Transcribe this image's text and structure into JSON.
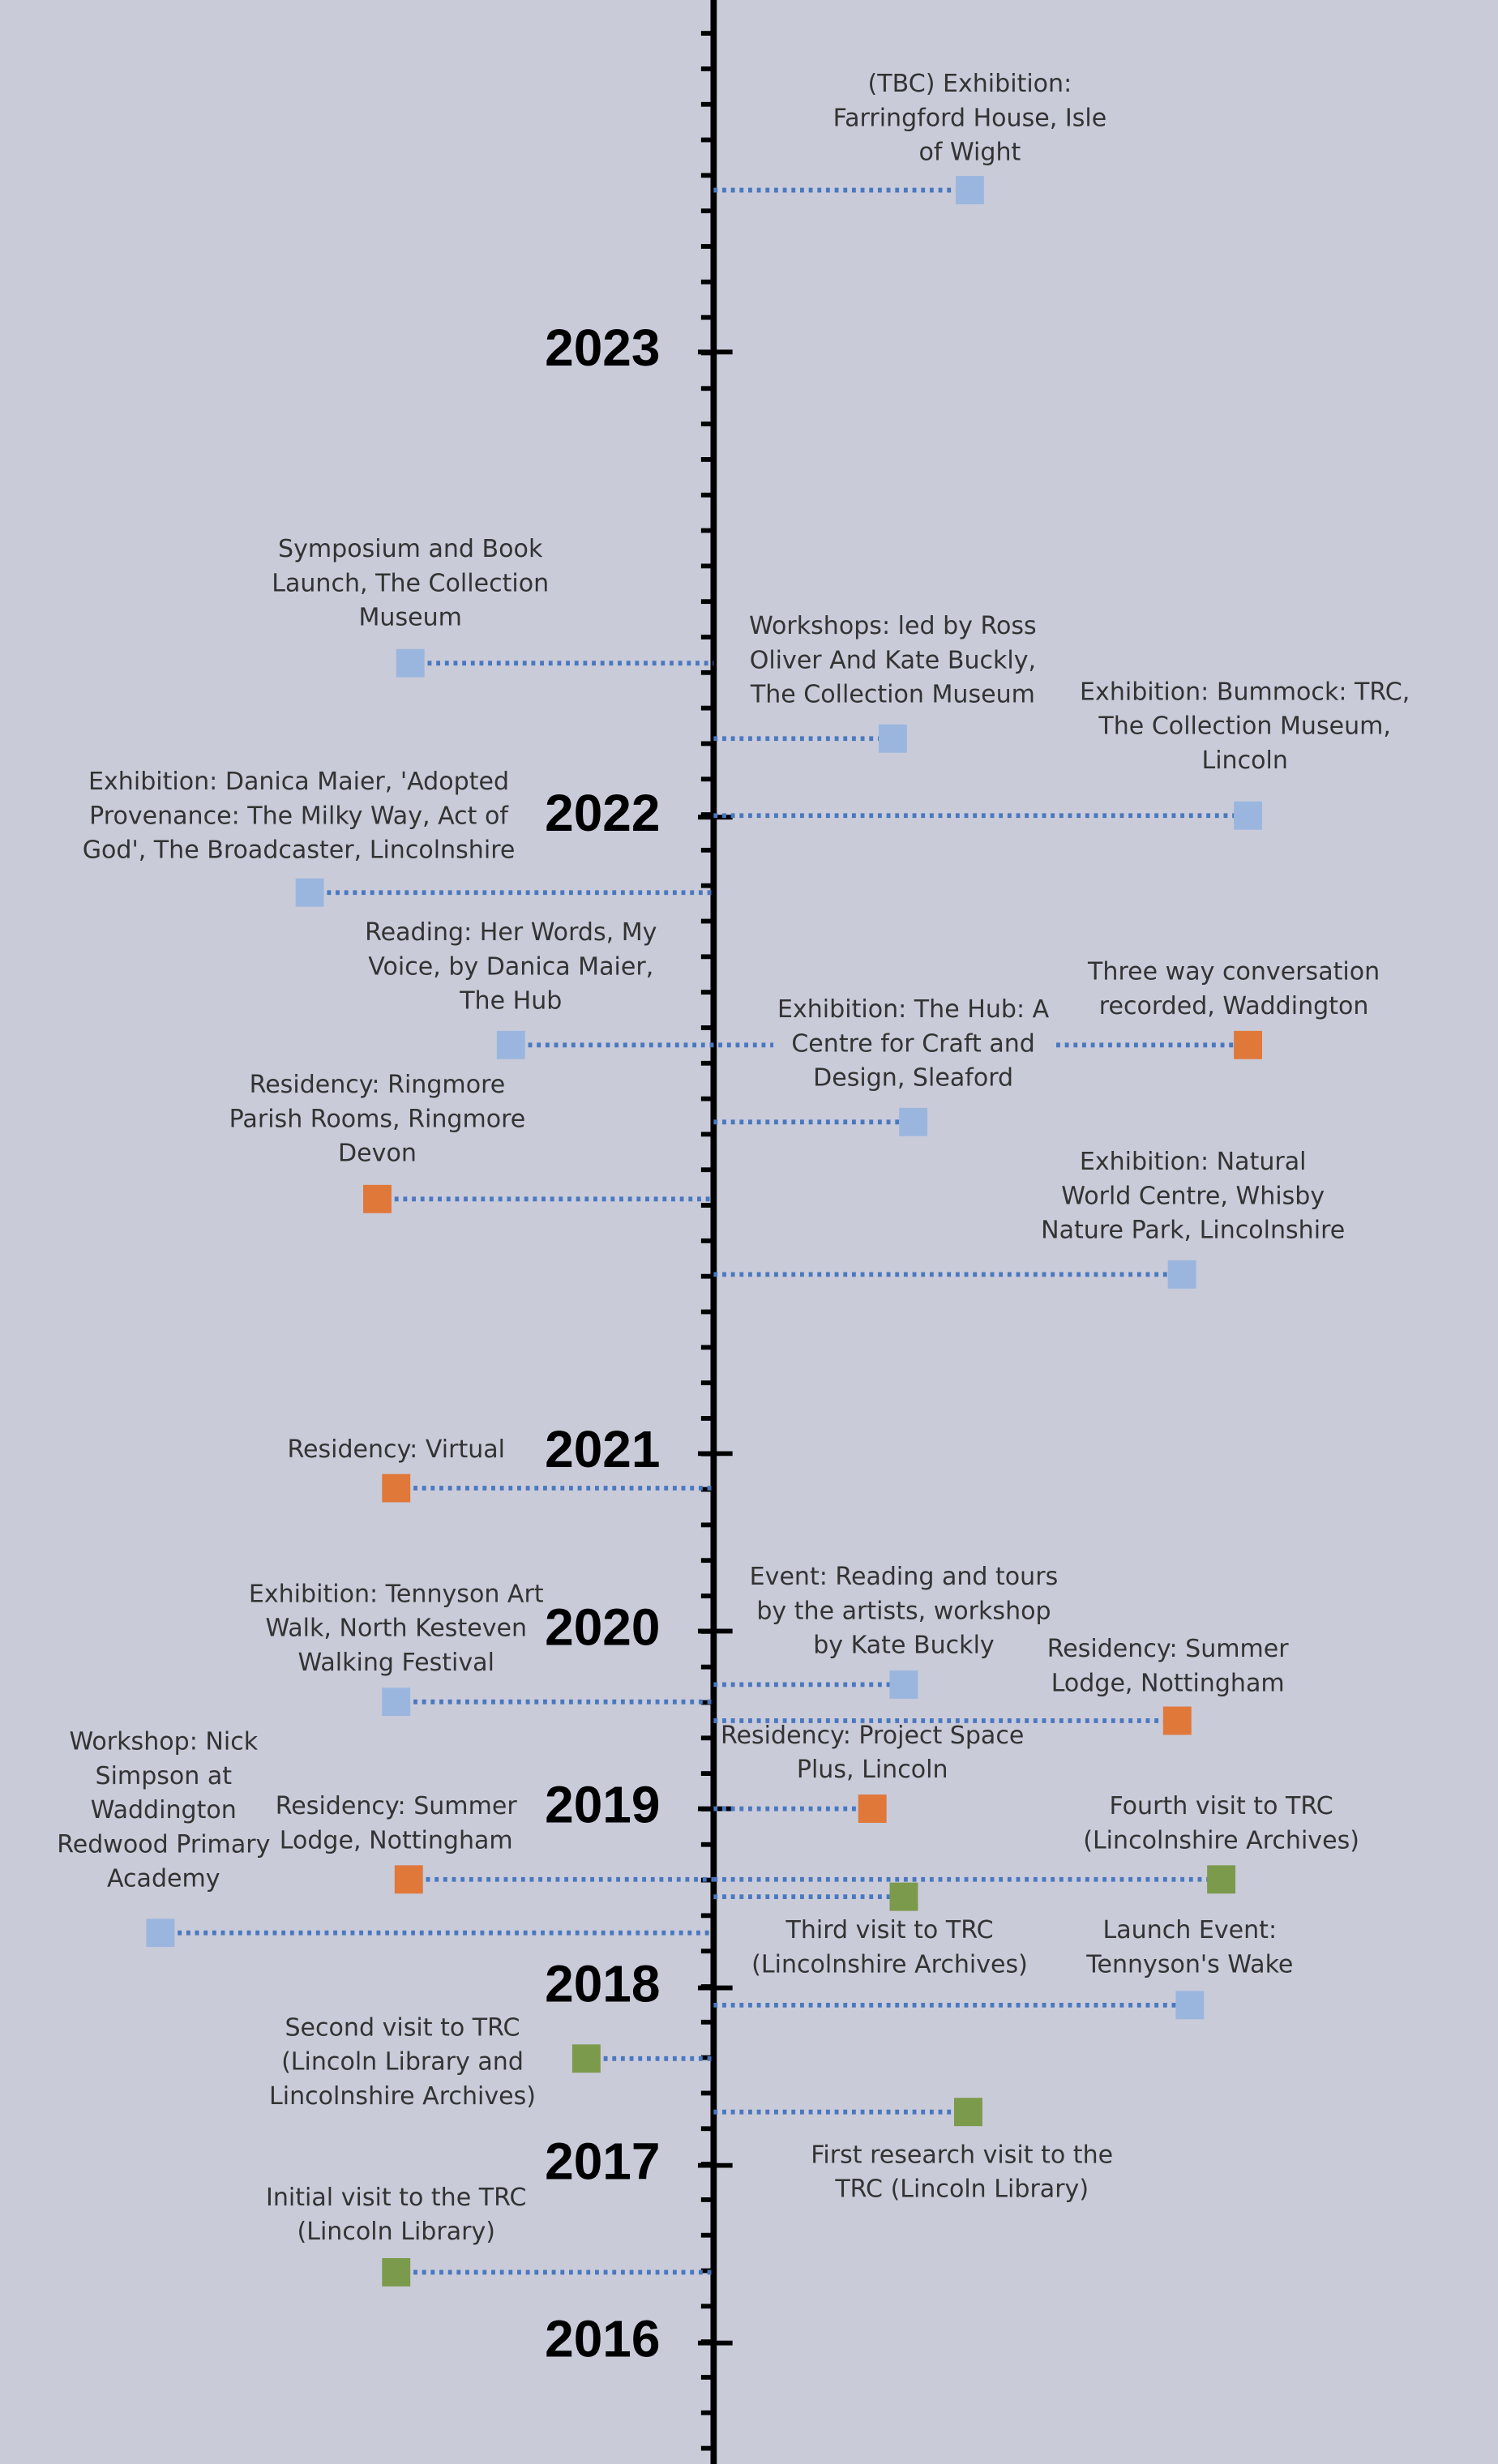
{
  "years": [
    "2023",
    "2022",
    "2021",
    "2020",
    "2019",
    "2018",
    "2017",
    "2016"
  ],
  "events": [
    {
      "label": [
        "(TBC) Exhibition:",
        "Farringford House, Isle",
        "of Wight"
      ]
    },
    {
      "label": [
        "Symposium and Book",
        "Launch, The Collection",
        "Museum"
      ]
    },
    {
      "label": [
        "Workshops: led by Ross",
        "Oliver And Kate Buckly,",
        "The Collection Museum"
      ]
    },
    {
      "label": [
        "Exhibition:  Bummock: TRC,",
        "The Collection Museum,",
        "Lincoln"
      ]
    },
    {
      "label": [
        "Exhibition: Danica Maier, 'Adopted",
        "Provenance: The Milky Way, Act of",
        "God', The Broadcaster, Lincolnshire"
      ]
    },
    {
      "label": [
        "Reading: Her Words, My",
        "Voice, by Danica Maier,",
        "The Hub"
      ]
    },
    {
      "label": [
        "Exhibition: The Hub: A",
        "Centre for Craft and",
        "Design, Sleaford"
      ]
    },
    {
      "label": [
        "Three way conversation",
        "recorded, Waddington"
      ]
    },
    {
      "label": [
        "Residency: Ringmore",
        "Parish Rooms, Ringmore",
        "Devon"
      ]
    },
    {
      "label": [
        "Exhibition: Natural",
        "World Centre, Whisby",
        "Nature Park, Lincolnshire"
      ]
    },
    {
      "label": [
        "Residency: Virtual"
      ]
    },
    {
      "label": [
        "Exhibition: Tennyson Art",
        "Walk, North Kesteven",
        "Walking Festival"
      ]
    },
    {
      "label": [
        "Event: Reading and tours",
        "by the artists, workshop",
        "by Kate Buckly"
      ]
    },
    {
      "label": [
        "Residency: Summer",
        "Lodge, Nottingham"
      ]
    },
    {
      "label": [
        "Residency: Project Space",
        "Plus, Lincoln"
      ]
    },
    {
      "label": [
        "Workshop: Nick",
        "Simpson at",
        "Waddington",
        "Redwood Primary",
        "Academy"
      ]
    },
    {
      "label": [
        "Residency: Summer",
        "Lodge, Nottingham"
      ]
    },
    {
      "label": [
        "Fourth visit to TRC",
        "(Lincolnshire Archives)"
      ]
    },
    {
      "label": [
        "Third visit to TRC",
        "(Lincolnshire Archives)"
      ]
    },
    {
      "label": [
        "Launch Event:",
        "Tennyson's Wake"
      ]
    },
    {
      "label": [
        "Second visit to TRC",
        "(Lincoln Library and",
        "Lincolnshire Archives)"
      ]
    },
    {
      "label": [
        "First research visit to the",
        "TRC (Lincoln Library)"
      ]
    },
    {
      "label": [
        "Initial visit to the TRC",
        "(Lincoln Library)"
      ]
    }
  ]
}
